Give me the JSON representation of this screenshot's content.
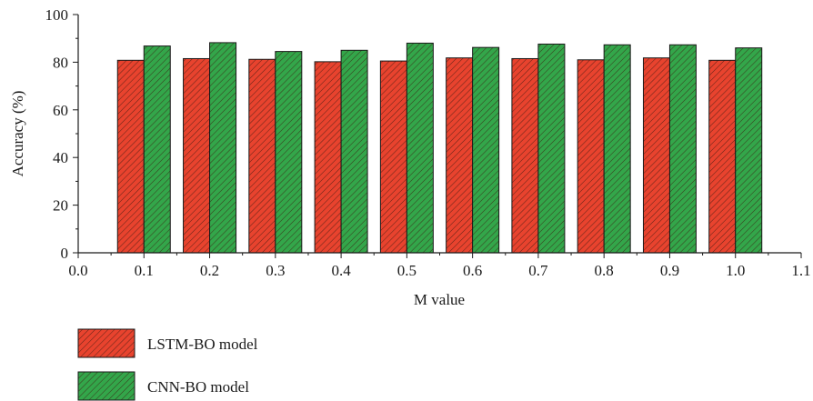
{
  "chart_data": {
    "type": "bar",
    "x": [
      0.1,
      0.2,
      0.3,
      0.4,
      0.5,
      0.6,
      0.7,
      0.8,
      0.9,
      1.0
    ],
    "series": [
      {
        "name": "LSTM-BO model",
        "color": "#e8432e",
        "values": [
          80.8,
          81.5,
          81.2,
          80.2,
          80.5,
          81.8,
          81.5,
          81.0,
          81.8,
          80.8
        ]
      },
      {
        "name": "CNN-BO model",
        "color": "#33a64a",
        "values": [
          86.8,
          88.2,
          84.5,
          85.0,
          88.0,
          86.2,
          87.6,
          87.3,
          87.3,
          86.0
        ]
      }
    ],
    "xlabel": "M value",
    "ylabel": "Accuracy (%)",
    "xlim": [
      0.0,
      1.1
    ],
    "ylim": [
      0,
      100
    ],
    "xticks": [
      "0.0",
      "0.1",
      "0.2",
      "0.3",
      "0.4",
      "0.5",
      "0.6",
      "0.7",
      "0.8",
      "0.9",
      "1.0",
      "1.1"
    ],
    "yticks": [
      "0",
      "20",
      "40",
      "60",
      "80",
      "100"
    ],
    "bar_pattern": "diagonal-hatch",
    "legend_placement": "bottom-left",
    "grid": false
  }
}
